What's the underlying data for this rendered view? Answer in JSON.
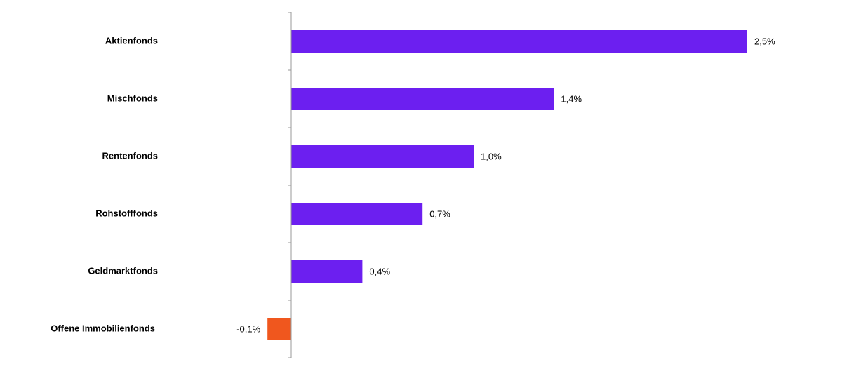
{
  "chart_data": {
    "type": "hbar",
    "categories": [
      "Aktienfonds",
      "Mischfonds",
      "Rentenfonds",
      "Rohstofffonds",
      "Geldmarktfonds",
      "Offene Immobilienfonds"
    ],
    "values": [
      2.5,
      1.44,
      1.0,
      0.72,
      0.39,
      -0.13
    ],
    "value_labels": [
      "2,5%",
      "1,4%",
      "1,0%",
      "0,7%",
      "0,4%",
      "-0,1%"
    ],
    "colors": [
      "#6c1ff0",
      "#6c1ff0",
      "#6c1ff0",
      "#6c1ff0",
      "#6c1ff0",
      "#f0571e"
    ],
    "xlim": [
      -1.2,
      3.0
    ]
  }
}
